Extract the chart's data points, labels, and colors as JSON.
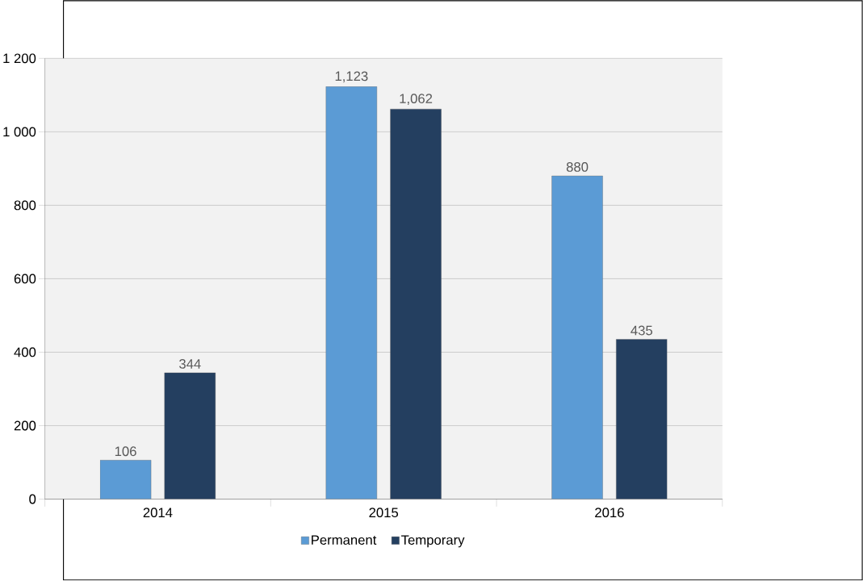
{
  "chart_data": {
    "type": "bar",
    "categories": [
      "2014",
      "2015",
      "2016"
    ],
    "series": [
      {
        "name": "Permanent",
        "color": "#5b9bd5",
        "values": [
          106,
          1123,
          880
        ],
        "value_labels": [
          "106",
          "1,123",
          "880"
        ]
      },
      {
        "name": "Temporary",
        "color": "#243f60",
        "values": [
          344,
          1062,
          435
        ],
        "value_labels": [
          "344",
          "1,062",
          "435"
        ]
      }
    ],
    "ylim": [
      0,
      1200
    ],
    "yticks": [
      0,
      200,
      400,
      600,
      800,
      {
        "value": 1000,
        "label": "1 000"
      },
      {
        "value": 1200,
        "label": "1 200"
      }
    ],
    "grid": "y",
    "legend": "bottom"
  }
}
